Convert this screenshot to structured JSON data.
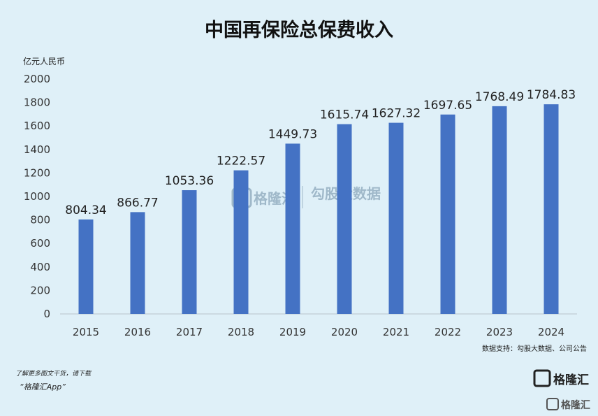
{
  "chart_data": {
    "type": "bar",
    "title": "中国再保险总保费收入",
    "unit_label": "亿元人民币",
    "categories": [
      "2015",
      "2016",
      "2017",
      "2018",
      "2019",
      "2020",
      "2021",
      "2022",
      "2023",
      "2024"
    ],
    "values": [
      804.34,
      866.77,
      1053.36,
      1222.57,
      1449.73,
      1615.74,
      1627.32,
      1697.65,
      1768.49,
      1784.83
    ],
    "data_labels": [
      "804.34",
      "866.77",
      "1053.36",
      "1222.57",
      "1449.73",
      "1615.74",
      "1627.32",
      "1697.65",
      "1768.49",
      "1784.83"
    ],
    "ylim": [
      0,
      2000
    ],
    "yticks": [
      "0",
      "200",
      "400",
      "600",
      "800",
      "1000",
      "1200",
      "1400",
      "1600",
      "1800",
      "2000"
    ],
    "bar_color": "#4472c4",
    "grid": false
  },
  "source_note": "数据支持：勾股大数据、公司公告",
  "footer": {
    "line1": "了解更多图文干货，请下载",
    "line2": "“格隆汇App”"
  },
  "logo": {
    "brand": "格隆汇",
    "corner_brand": "格隆汇"
  },
  "watermark": {
    "brand1": "格隆汇",
    "brand2": "勾股大数据"
  },
  "colors": {
    "background": "#dff0f8",
    "bar": "#4472c4"
  }
}
